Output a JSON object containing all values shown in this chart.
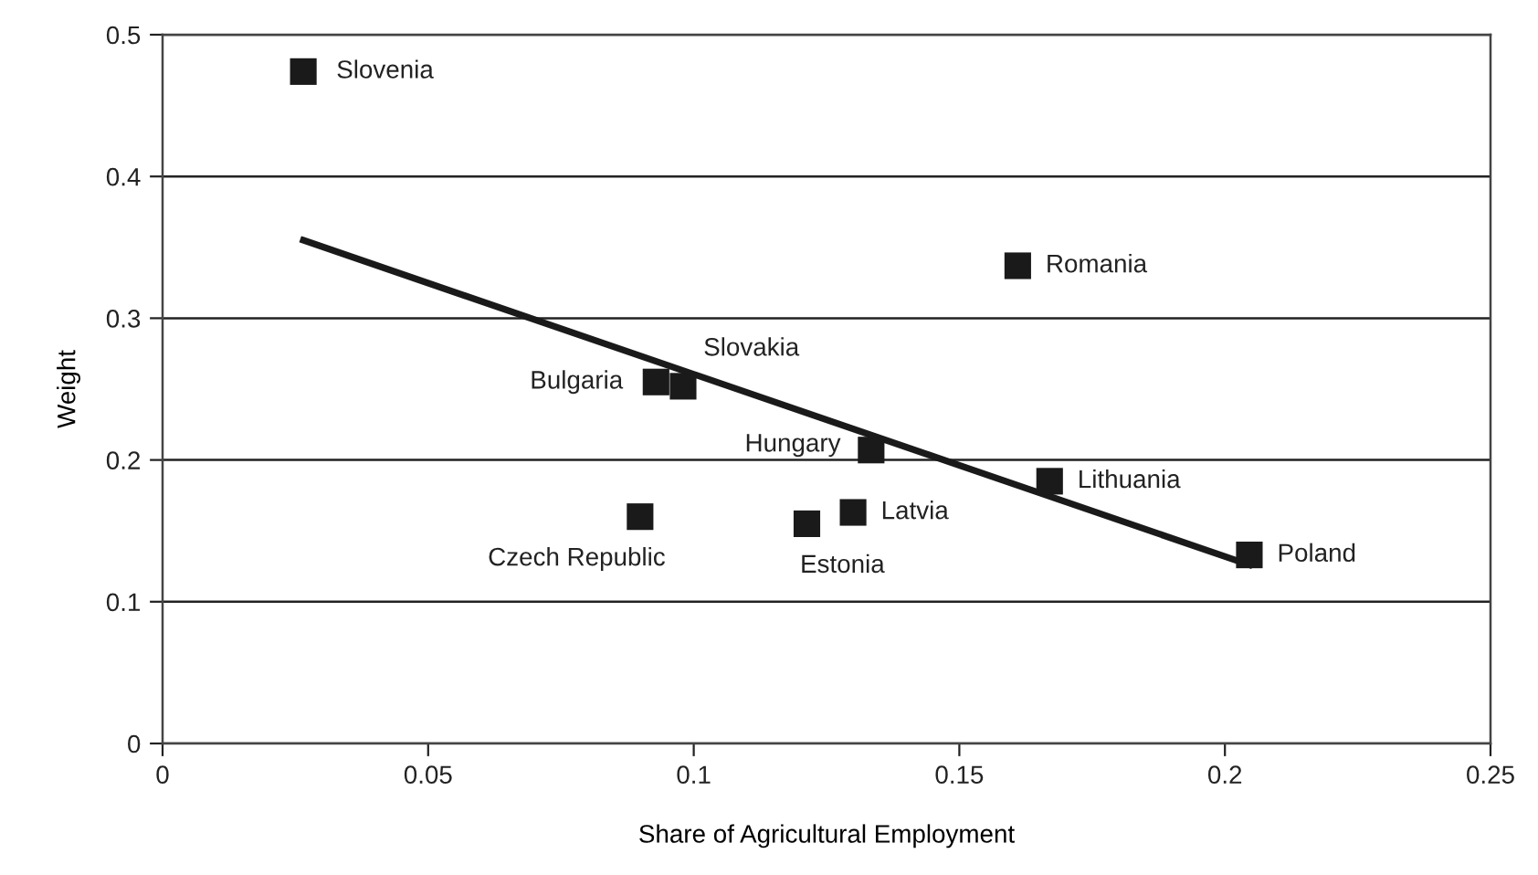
{
  "chart_data": {
    "type": "scatter",
    "xlabel": "Share of Agricultural Employment",
    "ylabel": "Weight",
    "xlim": [
      0,
      0.25
    ],
    "xticks": [
      0,
      0.05,
      0.1,
      0.15,
      0.2,
      0.25
    ],
    "ylim": [
      0,
      0.5
    ],
    "yticks": [
      0,
      0.1,
      0.2,
      0.3,
      0.4,
      0.5
    ],
    "grid": "y",
    "legend": false,
    "marker": "square",
    "series": [
      {
        "color": "#1a1a1a",
        "x": [
          0.0265,
          0.0929,
          0.098,
          0.1334,
          0.0899,
          0.1213,
          0.13,
          0.161,
          0.167,
          0.2046
        ],
        "values": [
          0.474,
          0.255,
          0.252,
          0.207,
          0.16,
          0.155,
          0.163,
          0.337,
          0.185,
          0.133
        ]
      },
      {
        "type": "line",
        "color": "#1a1a1a",
        "line_style": "solid",
        "marker": "none",
        "x": [
          0.0265,
          0.2046
        ],
        "values": [
          0.355,
          0.126
        ]
      }
    ],
    "annotations": [
      {
        "text": "Slovenia",
        "x": 0.0265,
        "y": 0.474
      },
      {
        "text": "Bulgaria",
        "x": 0.0929,
        "y": 0.255
      },
      {
        "text": "Slovakia",
        "x": 0.098,
        "y": 0.252
      },
      {
        "text": "Hungary",
        "x": 0.1334,
        "y": 0.207
      },
      {
        "text": "Czech Republic",
        "x": 0.0899,
        "y": 0.16
      },
      {
        "text": "Estonia",
        "x": 0.1213,
        "y": 0.155
      },
      {
        "text": "Latvia",
        "x": 0.13,
        "y": 0.163
      },
      {
        "text": "Romania",
        "x": 0.161,
        "y": 0.337
      },
      {
        "text": "Lithuania",
        "x": 0.167,
        "y": 0.185
      },
      {
        "text": "Poland",
        "x": 0.2046,
        "y": 0.133
      }
    ]
  }
}
